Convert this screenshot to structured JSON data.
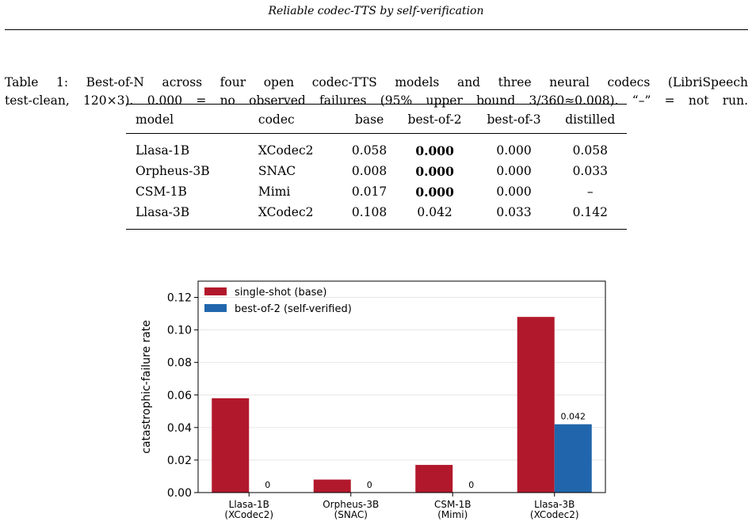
{
  "header": {
    "running_title": "Reliable codec-TTS by self-verification"
  },
  "caption": {
    "line1": "Table 1: Best-of-N across four open codec-TTS models and three neural codecs (LibriSpeech",
    "line2": "test-clean, 120×3). 0.000 = no observed failures (95% upper bound 3/360≈0.008). “–” = not run."
  },
  "table": {
    "columns": [
      "model",
      "codec",
      "base",
      "best-of-2",
      "best-of-3",
      "distilled"
    ],
    "rows": [
      {
        "model": "Llasa-1B",
        "codec": "XCodec2",
        "base": "0.058",
        "best_of_2": "0.000",
        "best_of_3": "0.000",
        "distilled": "0.058"
      },
      {
        "model": "Orpheus-3B",
        "codec": "SNAC",
        "base": "0.008",
        "best_of_2": "0.000",
        "best_of_3": "0.000",
        "distilled": "0.033"
      },
      {
        "model": "CSM-1B",
        "codec": "Mimi",
        "base": "0.017",
        "best_of_2": "0.000",
        "best_of_3": "0.000",
        "distilled": "–"
      },
      {
        "model": "Llasa-3B",
        "codec": "XCodec2",
        "base": "0.108",
        "best_of_2": "0.042",
        "best_of_3": "0.033",
        "distilled": "0.142"
      }
    ]
  },
  "chart_data": {
    "type": "bar",
    "categories": [
      "Llasa-1B\n(XCodec2)",
      "Orpheus-3B\n(SNAC)",
      "CSM-1B\n(Mimi)",
      "Llasa-3B\n(XCodec2)"
    ],
    "series": [
      {
        "name": "single-shot (base)",
        "values": [
          0.058,
          0.008,
          0.017,
          0.108
        ],
        "color": "#b2182b"
      },
      {
        "name": "best-of-2 (self-verified)",
        "values": [
          0.0,
          0.0,
          0.0,
          0.042
        ],
        "color": "#2166ac"
      }
    ],
    "data_labels": [
      "0",
      "0",
      "0",
      "0.042"
    ],
    "ylabel": "catastrophic-failure rate",
    "xlabel": "",
    "ylim": [
      0,
      0.13
    ],
    "yticks": [
      "0.00",
      "0.02",
      "0.04",
      "0.06",
      "0.08",
      "0.10",
      "0.12"
    ],
    "grid": "horizontal",
    "legend": "top-left"
  }
}
